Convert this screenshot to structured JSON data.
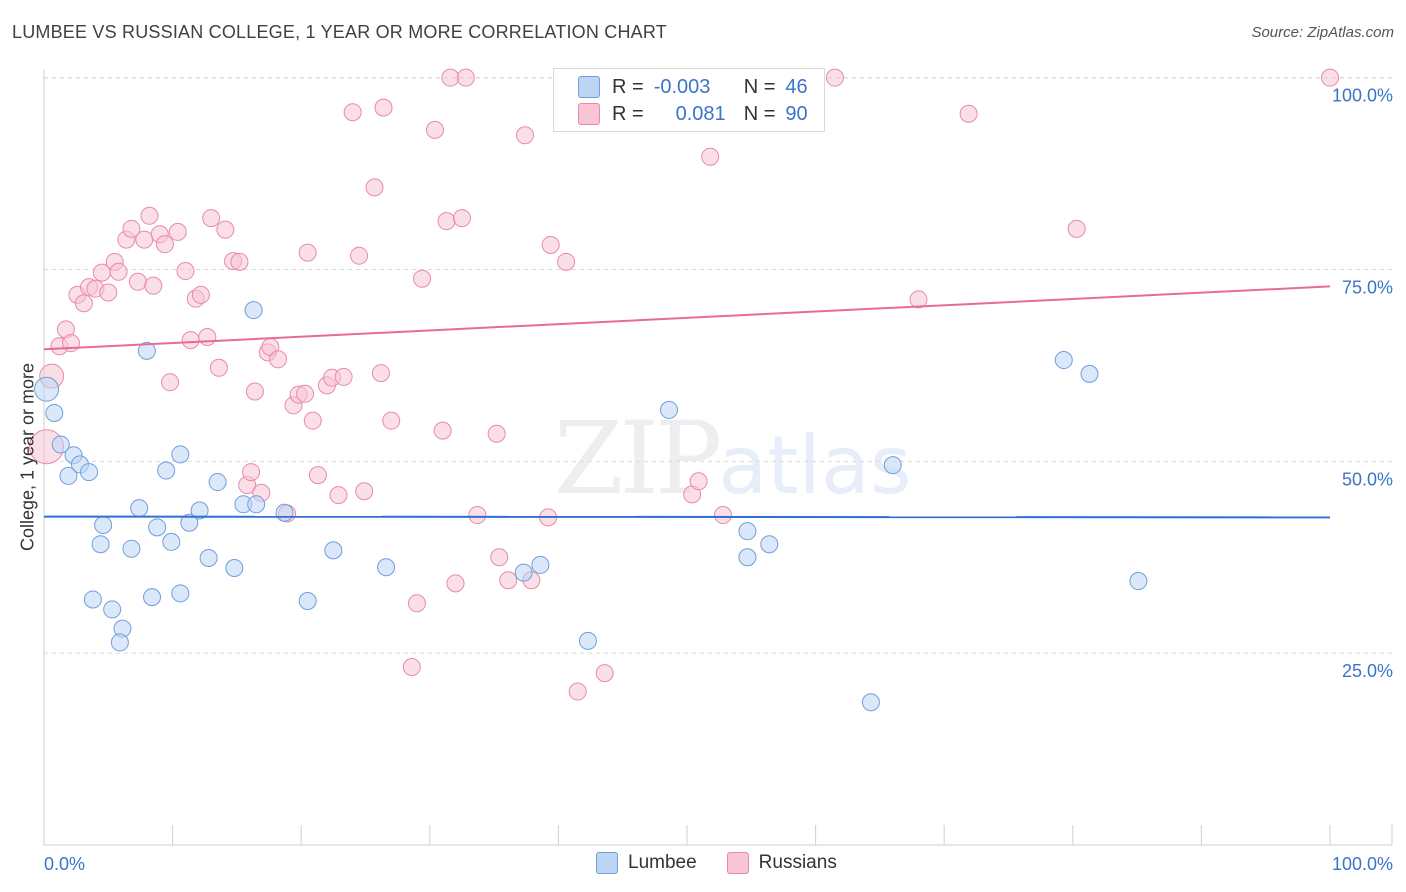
{
  "title": "LUMBEE VS RUSSIAN COLLEGE, 1 YEAR OR MORE CORRELATION CHART",
  "source": "Source: ZipAtlas.com",
  "watermark": {
    "zip": "ZIP",
    "atlas": "atlas"
  },
  "colors": {
    "lumbee_fill": "#bcd5f5",
    "lumbee_stroke": "#6f9fdc",
    "lumbee_line": "#2f6fcf",
    "russian_fill": "#f7c5d3",
    "russian_stroke": "#e98aa8",
    "russian_line": "#e56b98",
    "grid": "#d9d9d9",
    "tick_text": "#3a74c9"
  },
  "legend": {
    "lumbee": {
      "r_label": "R =",
      "r_value": "-0.003",
      "n_label": "N =",
      "n_value": "46"
    },
    "russians": {
      "r_label": "R =",
      "r_value": "0.081",
      "n_label": "N =",
      "n_value": "90"
    }
  },
  "bottom_legend": {
    "lumbee": "Lumbee",
    "russians": "Russians"
  },
  "chart_data": {
    "type": "scatter",
    "title": "LUMBEE VS RUSSIAN COLLEGE, 1 YEAR OR MORE CORRELATION CHART",
    "xlabel": "",
    "ylabel": "College, 1 year or more",
    "xlim": [
      0,
      100
    ],
    "ylim": [
      0,
      101
    ],
    "x_tick_labels": [
      "0.0%",
      "100.0%"
    ],
    "y_tick_values": [
      25,
      50,
      75,
      100
    ],
    "y_tick_labels": [
      "25.0%",
      "50.0%",
      "75.0%",
      "100.0%"
    ],
    "grid": true,
    "series": [
      {
        "name": "Lumbee",
        "R": -0.003,
        "N": 46,
        "trend": {
          "x": [
            0,
            100
          ],
          "y": [
            42.8,
            42.7
          ]
        },
        "points": [
          {
            "x": 0.2,
            "y": 59.4,
            "s": 2
          },
          {
            "x": 0.8,
            "y": 56.3,
            "s": 1
          },
          {
            "x": 1.3,
            "y": 52.2,
            "s": 1
          },
          {
            "x": 1.9,
            "y": 48.1,
            "s": 1
          },
          {
            "x": 2.3,
            "y": 50.8,
            "s": 1
          },
          {
            "x": 2.8,
            "y": 49.6,
            "s": 1
          },
          {
            "x": 3.5,
            "y": 48.6,
            "s": 1
          },
          {
            "x": 4.4,
            "y": 39.2,
            "s": 1
          },
          {
            "x": 4.6,
            "y": 41.7,
            "s": 1
          },
          {
            "x": 3.8,
            "y": 32.0,
            "s": 1
          },
          {
            "x": 5.3,
            "y": 30.7,
            "s": 1
          },
          {
            "x": 6.1,
            "y": 28.2,
            "s": 1
          },
          {
            "x": 5.9,
            "y": 26.4,
            "s": 1
          },
          {
            "x": 6.8,
            "y": 38.6,
            "s": 1
          },
          {
            "x": 7.4,
            "y": 43.9,
            "s": 1
          },
          {
            "x": 8.0,
            "y": 64.4,
            "s": 1
          },
          {
            "x": 8.4,
            "y": 32.3,
            "s": 1
          },
          {
            "x": 8.8,
            "y": 41.4,
            "s": 1
          },
          {
            "x": 9.5,
            "y": 48.8,
            "s": 1
          },
          {
            "x": 9.9,
            "y": 39.5,
            "s": 1
          },
          {
            "x": 10.6,
            "y": 50.9,
            "s": 1
          },
          {
            "x": 10.6,
            "y": 32.8,
            "s": 1
          },
          {
            "x": 11.3,
            "y": 42.0,
            "s": 1
          },
          {
            "x": 12.1,
            "y": 43.6,
            "s": 1
          },
          {
            "x": 12.8,
            "y": 37.4,
            "s": 1
          },
          {
            "x": 13.5,
            "y": 47.3,
            "s": 1
          },
          {
            "x": 14.8,
            "y": 36.1,
            "s": 1
          },
          {
            "x": 15.5,
            "y": 44.4,
            "s": 1
          },
          {
            "x": 16.5,
            "y": 44.4,
            "s": 1
          },
          {
            "x": 16.3,
            "y": 69.7,
            "s": 1
          },
          {
            "x": 18.7,
            "y": 43.3,
            "s": 1
          },
          {
            "x": 20.5,
            "y": 31.8,
            "s": 1
          },
          {
            "x": 22.5,
            "y": 38.4,
            "s": 1
          },
          {
            "x": 26.6,
            "y": 36.2,
            "s": 1
          },
          {
            "x": 37.3,
            "y": 35.5,
            "s": 1
          },
          {
            "x": 38.6,
            "y": 36.5,
            "s": 1
          },
          {
            "x": 42.3,
            "y": 26.6,
            "s": 1
          },
          {
            "x": 48.6,
            "y": 56.7,
            "s": 1
          },
          {
            "x": 54.7,
            "y": 40.9,
            "s": 1
          },
          {
            "x": 54.7,
            "y": 37.5,
            "s": 1
          },
          {
            "x": 56.4,
            "y": 39.2,
            "s": 1
          },
          {
            "x": 64.3,
            "y": 18.6,
            "s": 1
          },
          {
            "x": 66.0,
            "y": 49.5,
            "s": 1
          },
          {
            "x": 79.3,
            "y": 63.2,
            "s": 1
          },
          {
            "x": 81.3,
            "y": 61.4,
            "s": 1
          },
          {
            "x": 85.1,
            "y": 34.4,
            "s": 1
          }
        ]
      },
      {
        "name": "Russians",
        "R": 0.081,
        "N": 90,
        "trend": {
          "x": [
            0,
            100
          ],
          "y": [
            64.6,
            72.8
          ]
        },
        "points": [
          {
            "x": 0.2,
            "y": 51.9,
            "s": 3
          },
          {
            "x": 0.6,
            "y": 61.1,
            "s": 2
          },
          {
            "x": 1.2,
            "y": 65.0,
            "s": 1
          },
          {
            "x": 1.7,
            "y": 67.2,
            "s": 1
          },
          {
            "x": 2.1,
            "y": 65.4,
            "s": 1
          },
          {
            "x": 2.6,
            "y": 71.7,
            "s": 1
          },
          {
            "x": 3.1,
            "y": 70.6,
            "s": 1
          },
          {
            "x": 3.5,
            "y": 72.7,
            "s": 1
          },
          {
            "x": 4.0,
            "y": 72.5,
            "s": 1
          },
          {
            "x": 4.5,
            "y": 74.6,
            "s": 1
          },
          {
            "x": 5.0,
            "y": 72.0,
            "s": 1
          },
          {
            "x": 5.5,
            "y": 76.0,
            "s": 1
          },
          {
            "x": 5.8,
            "y": 74.7,
            "s": 1
          },
          {
            "x": 6.4,
            "y": 78.9,
            "s": 1
          },
          {
            "x": 6.8,
            "y": 80.3,
            "s": 1
          },
          {
            "x": 7.3,
            "y": 73.4,
            "s": 1
          },
          {
            "x": 7.8,
            "y": 78.9,
            "s": 1
          },
          {
            "x": 8.2,
            "y": 82.0,
            "s": 1
          },
          {
            "x": 8.5,
            "y": 72.9,
            "s": 1
          },
          {
            "x": 9.0,
            "y": 79.6,
            "s": 1
          },
          {
            "x": 9.4,
            "y": 78.3,
            "s": 1
          },
          {
            "x": 9.8,
            "y": 60.3,
            "s": 1
          },
          {
            "x": 10.4,
            "y": 79.9,
            "s": 1
          },
          {
            "x": 11.0,
            "y": 74.8,
            "s": 1
          },
          {
            "x": 11.4,
            "y": 65.8,
            "s": 1
          },
          {
            "x": 11.8,
            "y": 71.2,
            "s": 1
          },
          {
            "x": 12.2,
            "y": 71.7,
            "s": 1
          },
          {
            "x": 12.7,
            "y": 66.2,
            "s": 1
          },
          {
            "x": 13.0,
            "y": 81.7,
            "s": 1
          },
          {
            "x": 13.6,
            "y": 62.2,
            "s": 1
          },
          {
            "x": 14.1,
            "y": 80.2,
            "s": 1
          },
          {
            "x": 14.7,
            "y": 76.1,
            "s": 1
          },
          {
            "x": 15.2,
            "y": 76.0,
            "s": 1
          },
          {
            "x": 15.8,
            "y": 46.9,
            "s": 1
          },
          {
            "x": 16.1,
            "y": 48.6,
            "s": 1
          },
          {
            "x": 16.4,
            "y": 59.1,
            "s": 1
          },
          {
            "x": 16.9,
            "y": 45.9,
            "s": 1
          },
          {
            "x": 17.4,
            "y": 64.2,
            "s": 1
          },
          {
            "x": 17.6,
            "y": 64.9,
            "s": 1
          },
          {
            "x": 18.2,
            "y": 63.3,
            "s": 1
          },
          {
            "x": 18.9,
            "y": 43.2,
            "s": 1
          },
          {
            "x": 19.4,
            "y": 57.3,
            "s": 1
          },
          {
            "x": 19.8,
            "y": 58.7,
            "s": 1
          },
          {
            "x": 20.3,
            "y": 58.8,
            "s": 1
          },
          {
            "x": 20.5,
            "y": 77.2,
            "s": 1
          },
          {
            "x": 20.9,
            "y": 55.3,
            "s": 1
          },
          {
            "x": 21.3,
            "y": 48.2,
            "s": 1
          },
          {
            "x": 22.0,
            "y": 59.9,
            "s": 1
          },
          {
            "x": 22.4,
            "y": 60.9,
            "s": 1
          },
          {
            "x": 22.9,
            "y": 45.6,
            "s": 1
          },
          {
            "x": 23.3,
            "y": 61.0,
            "s": 1
          },
          {
            "x": 24.0,
            "y": 95.5,
            "s": 1
          },
          {
            "x": 24.5,
            "y": 76.8,
            "s": 1
          },
          {
            "x": 24.9,
            "y": 46.1,
            "s": 1
          },
          {
            "x": 25.7,
            "y": 85.7,
            "s": 1
          },
          {
            "x": 26.2,
            "y": 61.5,
            "s": 1
          },
          {
            "x": 26.4,
            "y": 96.1,
            "s": 1
          },
          {
            "x": 27.0,
            "y": 55.3,
            "s": 1
          },
          {
            "x": 28.6,
            "y": 23.2,
            "s": 1
          },
          {
            "x": 29.0,
            "y": 31.5,
            "s": 1
          },
          {
            "x": 29.4,
            "y": 73.8,
            "s": 1
          },
          {
            "x": 30.4,
            "y": 93.2,
            "s": 1
          },
          {
            "x": 31.0,
            "y": 54.0,
            "s": 1
          },
          {
            "x": 31.3,
            "y": 81.3,
            "s": 1
          },
          {
            "x": 31.6,
            "y": 100.0,
            "s": 1
          },
          {
            "x": 32.0,
            "y": 34.1,
            "s": 1
          },
          {
            "x": 32.5,
            "y": 81.7,
            "s": 1
          },
          {
            "x": 32.8,
            "y": 100.0,
            "s": 1
          },
          {
            "x": 33.7,
            "y": 43.0,
            "s": 1
          },
          {
            "x": 35.2,
            "y": 53.6,
            "s": 1
          },
          {
            "x": 35.4,
            "y": 37.5,
            "s": 1
          },
          {
            "x": 36.1,
            "y": 34.5,
            "s": 1
          },
          {
            "x": 37.4,
            "y": 92.5,
            "s": 1
          },
          {
            "x": 37.9,
            "y": 34.5,
            "s": 1
          },
          {
            "x": 39.2,
            "y": 42.7,
            "s": 1
          },
          {
            "x": 39.4,
            "y": 78.2,
            "s": 1
          },
          {
            "x": 40.6,
            "y": 76.0,
            "s": 1
          },
          {
            "x": 41.5,
            "y": 20.0,
            "s": 1
          },
          {
            "x": 43.6,
            "y": 22.4,
            "s": 1
          },
          {
            "x": 47.1,
            "y": 100.0,
            "s": 1
          },
          {
            "x": 50.4,
            "y": 45.7,
            "s": 1
          },
          {
            "x": 50.9,
            "y": 47.4,
            "s": 1
          },
          {
            "x": 51.8,
            "y": 89.7,
            "s": 1
          },
          {
            "x": 52.8,
            "y": 43.0,
            "s": 1
          },
          {
            "x": 59.5,
            "y": 100.0,
            "s": 1
          },
          {
            "x": 61.5,
            "y": 100.0,
            "s": 1
          },
          {
            "x": 68.0,
            "y": 71.1,
            "s": 1
          },
          {
            "x": 71.9,
            "y": 95.3,
            "s": 1
          },
          {
            "x": 80.3,
            "y": 80.3,
            "s": 1
          },
          {
            "x": 100.0,
            "y": 100.0,
            "s": 1
          }
        ]
      }
    ]
  }
}
